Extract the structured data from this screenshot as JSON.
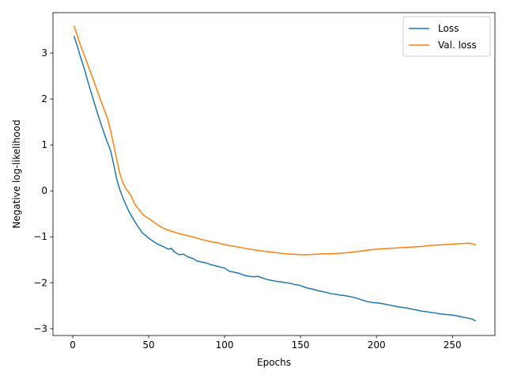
{
  "chart_data": {
    "type": "line",
    "title": "",
    "xlabel": "Epochs",
    "ylabel": "Negative log-likelihood",
    "xlim": [
      -13,
      278
    ],
    "ylim": [
      -3.15,
      3.88
    ],
    "xticks": [
      0,
      50,
      100,
      150,
      200,
      250
    ],
    "yticks": [
      -3,
      -2,
      -1,
      0,
      1,
      2,
      3
    ],
    "grid": false,
    "legend_position": "top-right",
    "series": [
      {
        "name": "Loss",
        "color": "#1f77b4",
        "x": [
          1,
          3,
          5,
          8,
          10,
          13,
          16,
          19,
          22,
          25,
          27,
          29,
          31,
          33,
          35,
          37,
          40,
          43,
          46,
          48,
          50,
          53,
          56,
          60,
          63,
          65,
          67,
          70,
          73,
          76,
          79,
          82,
          85,
          88,
          91,
          94,
          97,
          100,
          103,
          106,
          110,
          113,
          116,
          119,
          122,
          125,
          128,
          131,
          134,
          137,
          140,
          143,
          146,
          149,
          152,
          155,
          158,
          161,
          164,
          167,
          170,
          173,
          176,
          179,
          182,
          185,
          188,
          191,
          194,
          197,
          200,
          203,
          206,
          209,
          212,
          215,
          218,
          221,
          224,
          227,
          230,
          233,
          236,
          239,
          242,
          245,
          248,
          251,
          254,
          257,
          260,
          263,
          265
        ],
        "values": [
          3.36,
          3.15,
          2.93,
          2.62,
          2.38,
          2.05,
          1.72,
          1.42,
          1.13,
          0.87,
          0.57,
          0.25,
          0.03,
          -0.15,
          -0.3,
          -0.45,
          -0.62,
          -0.78,
          -0.92,
          -0.97,
          -1.03,
          -1.1,
          -1.16,
          -1.22,
          -1.27,
          -1.25,
          -1.33,
          -1.39,
          -1.38,
          -1.44,
          -1.47,
          -1.53,
          -1.55,
          -1.57,
          -1.61,
          -1.63,
          -1.66,
          -1.68,
          -1.75,
          -1.77,
          -1.8,
          -1.84,
          -1.86,
          -1.87,
          -1.86,
          -1.9,
          -1.93,
          -1.95,
          -1.97,
          -1.98,
          -2.0,
          -2.01,
          -2.04,
          -2.05,
          -2.09,
          -2.12,
          -2.14,
          -2.17,
          -2.19,
          -2.21,
          -2.24,
          -2.25,
          -2.27,
          -2.28,
          -2.3,
          -2.32,
          -2.35,
          -2.38,
          -2.41,
          -2.43,
          -2.44,
          -2.45,
          -2.47,
          -2.49,
          -2.51,
          -2.53,
          -2.54,
          -2.56,
          -2.58,
          -2.6,
          -2.62,
          -2.63,
          -2.65,
          -2.66,
          -2.68,
          -2.69,
          -2.7,
          -2.71,
          -2.73,
          -2.75,
          -2.77,
          -2.79,
          -2.83
        ]
      },
      {
        "name": "Val. loss",
        "color": "#ff7f0e",
        "x": [
          1,
          3,
          5,
          8,
          11,
          14,
          17,
          20,
          23,
          25,
          27,
          29,
          31,
          33,
          35,
          38,
          41,
          44,
          47,
          50,
          53,
          56,
          60,
          65,
          70,
          75,
          80,
          85,
          90,
          95,
          100,
          105,
          110,
          115,
          120,
          125,
          130,
          135,
          140,
          145,
          150,
          155,
          160,
          165,
          170,
          175,
          180,
          185,
          190,
          195,
          200,
          205,
          210,
          215,
          220,
          225,
          230,
          235,
          240,
          245,
          250,
          255,
          260,
          263,
          265
        ],
        "values": [
          3.58,
          3.38,
          3.18,
          2.92,
          2.65,
          2.38,
          2.1,
          1.83,
          1.57,
          1.3,
          1.0,
          0.68,
          0.38,
          0.18,
          0.05,
          -0.08,
          -0.3,
          -0.42,
          -0.54,
          -0.6,
          -0.67,
          -0.74,
          -0.82,
          -0.88,
          -0.93,
          -0.97,
          -1.01,
          -1.06,
          -1.1,
          -1.13,
          -1.17,
          -1.2,
          -1.23,
          -1.26,
          -1.29,
          -1.31,
          -1.33,
          -1.35,
          -1.37,
          -1.38,
          -1.39,
          -1.39,
          -1.38,
          -1.37,
          -1.37,
          -1.36,
          -1.35,
          -1.33,
          -1.31,
          -1.29,
          -1.27,
          -1.26,
          -1.25,
          -1.24,
          -1.23,
          -1.22,
          -1.21,
          -1.19,
          -1.18,
          -1.17,
          -1.16,
          -1.15,
          -1.14,
          -1.15,
          -1.17
        ]
      }
    ]
  }
}
